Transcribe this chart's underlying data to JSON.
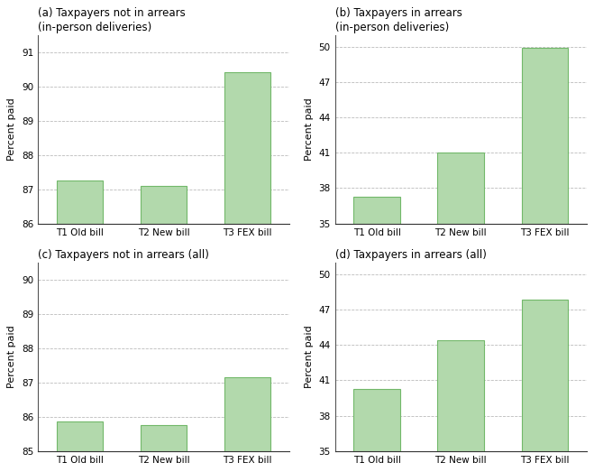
{
  "subplots": [
    {
      "label": "(a) Taxpayers not in arrears\n(in-person deliveries)",
      "categories": [
        "T1 Old bill",
        "T2 New bill",
        "T3 FEX bill"
      ],
      "values": [
        87.25,
        87.1,
        90.4
      ],
      "ylim": [
        86,
        91.5
      ],
      "yticks": [
        86,
        87,
        88,
        89,
        90,
        91
      ]
    },
    {
      "label": "(b) Taxpayers in arrears\n(in-person deliveries)",
      "categories": [
        "T1 Old bill",
        "T2 New bill",
        "T3 FEX bill"
      ],
      "values": [
        37.3,
        41.0,
        49.9
      ],
      "ylim": [
        35,
        51.0
      ],
      "yticks": [
        35,
        38,
        41,
        44,
        47,
        50
      ]
    },
    {
      "label": "(c) Taxpayers not in arrears (all)",
      "categories": [
        "T1 Old bill",
        "T2 New bill",
        "T3 FEX bill"
      ],
      "values": [
        85.85,
        85.75,
        87.15
      ],
      "ylim": [
        85,
        90.5
      ],
      "yticks": [
        85,
        86,
        87,
        88,
        89,
        90
      ]
    },
    {
      "label": "(d) Taxpayers in arrears (all)",
      "categories": [
        "T1 Old bill",
        "T2 New bill",
        "T3 FEX bill"
      ],
      "values": [
        40.3,
        44.4,
        47.8
      ],
      "ylim": [
        35,
        51.0
      ],
      "yticks": [
        35,
        38,
        41,
        44,
        47,
        50
      ]
    }
  ],
  "bar_color": "#b2d9ac",
  "bar_edgecolor": "#72b86a",
  "ylabel": "Percent paid",
  "bg_color": "#ffffff",
  "grid_color": "#bbbbbb"
}
